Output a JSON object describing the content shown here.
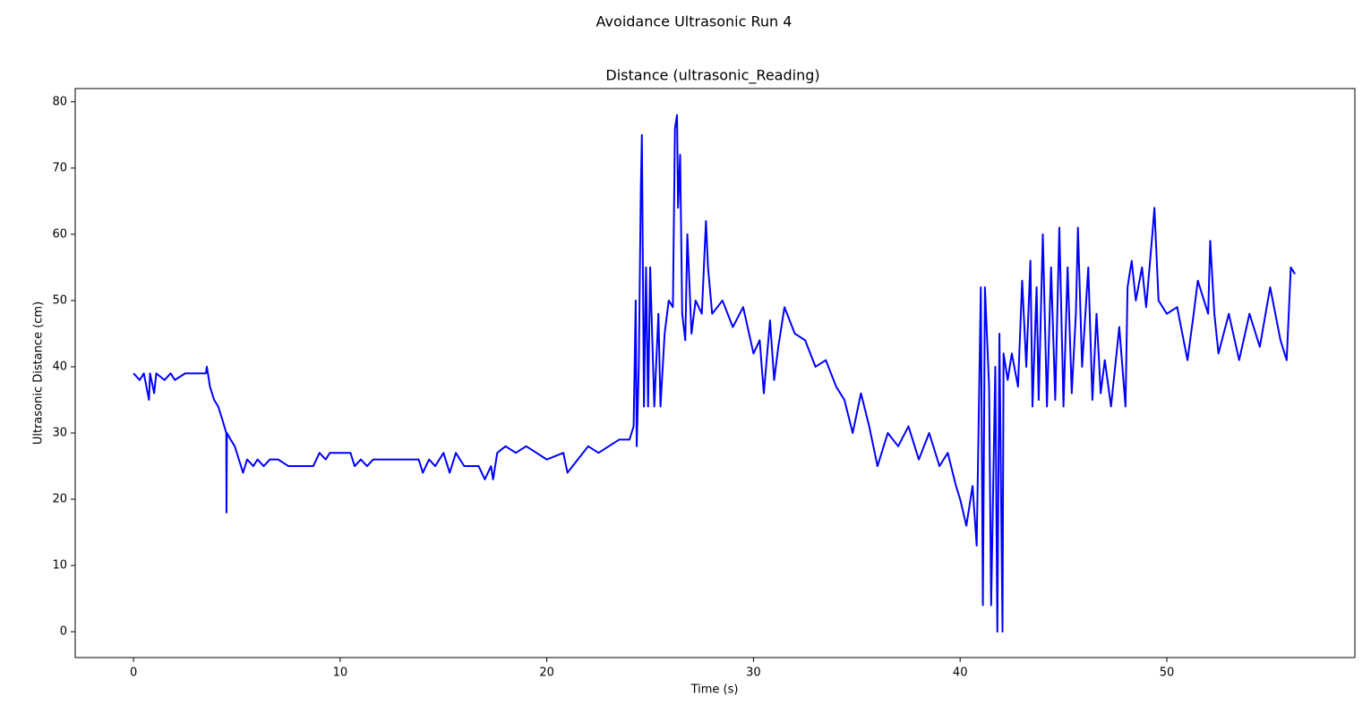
{
  "chart_data": {
    "type": "line",
    "title": "Avoidance Ultrasonic Run 4",
    "subtitle": "Distance (ultrasonic_Reading)",
    "x_label": "Time (s)",
    "y_label": "Ultrasonic Distance (cm)",
    "color": "#0000ff",
    "x": [
      0,
      0.3,
      0.5,
      0.75,
      0.8,
      1.0,
      1.1,
      1.5,
      1.8,
      2.0,
      2.5,
      3.0,
      3.5,
      3.55,
      3.7,
      3.9,
      4.1,
      4.3,
      4.49,
      4.5,
      4.52,
      4.7,
      4.9,
      5.1,
      5.3,
      5.5,
      5.8,
      6.0,
      6.3,
      6.6,
      7.0,
      7.5,
      8.7,
      9.0,
      9.3,
      9.5,
      10.5,
      10.7,
      11.0,
      11.3,
      11.6,
      12.0,
      13.8,
      14.0,
      14.3,
      14.6,
      15.0,
      15.3,
      15.6,
      16.0,
      16.7,
      17.0,
      17.3,
      17.4,
      17.6,
      18.0,
      18.5,
      19.0,
      19.5,
      20.0,
      20.8,
      21.0,
      21.5,
      22.0,
      22.5,
      23.0,
      23.5,
      24.0,
      24.2,
      24.3,
      24.35,
      24.45,
      24.55,
      24.6,
      24.7,
      24.8,
      24.9,
      25.0,
      25.2,
      25.4,
      25.5,
      25.7,
      25.9,
      26.1,
      26.2,
      26.3,
      26.35,
      26.45,
      26.55,
      26.7,
      26.8,
      27.0,
      27.2,
      27.5,
      27.7,
      27.8,
      28.0,
      28.5,
      29.0,
      29.5,
      30.0,
      30.3,
      30.5,
      30.8,
      31.0,
      31.2,
      31.5,
      32.0,
      32.5,
      33.0,
      33.5,
      34.0,
      34.4,
      34.8,
      35.2,
      35.6,
      36.0,
      36.5,
      37.0,
      37.5,
      38.0,
      38.5,
      39.0,
      39.4,
      39.8,
      40.0,
      40.3,
      40.6,
      40.8,
      41.0,
      41.1,
      41.2,
      41.4,
      41.5,
      41.7,
      41.8,
      41.9,
      42.05,
      42.1,
      42.3,
      42.5,
      42.8,
      43.0,
      43.2,
      43.4,
      43.5,
      43.7,
      43.8,
      44.0,
      44.2,
      44.4,
      44.6,
      44.8,
      45.0,
      45.2,
      45.4,
      45.6,
      45.7,
      45.9,
      46.2,
      46.4,
      46.6,
      46.8,
      47.0,
      47.3,
      47.5,
      47.7,
      48.0,
      48.1,
      48.3,
      48.5,
      48.8,
      49.0,
      49.3,
      49.4,
      49.6,
      50.0,
      50.5,
      51.0,
      51.3,
      51.5,
      52.0,
      52.1,
      52.3,
      52.5,
      53.0,
      53.5,
      54.0,
      54.5,
      55.0,
      55.5,
      55.8,
      56.0,
      56.2
    ],
    "values": [
      39,
      38,
      39,
      35,
      39,
      36,
      39,
      38,
      39,
      38,
      39,
      39,
      39,
      40,
      37,
      35,
      34,
      32,
      30,
      18,
      30,
      29,
      28,
      26,
      24,
      26,
      25,
      26,
      25,
      26,
      26,
      25,
      25,
      27,
      26,
      27,
      27,
      25,
      26,
      25,
      26,
      26,
      26,
      24,
      26,
      25,
      27,
      24,
      27,
      25,
      25,
      23,
      25,
      23,
      27,
      28,
      27,
      28,
      27,
      26,
      27,
      24,
      26,
      28,
      27,
      28,
      29,
      29,
      31,
      50,
      28,
      40,
      67,
      75,
      34,
      55,
      34,
      55,
      34,
      48,
      34,
      45,
      50,
      49,
      76,
      78,
      64,
      72,
      48,
      44,
      60,
      45,
      50,
      48,
      62,
      55,
      48,
      50,
      46,
      49,
      42,
      44,
      36,
      47,
      38,
      43,
      49,
      45,
      44,
      40,
      41,
      37,
      35,
      30,
      36,
      31,
      25,
      30,
      28,
      31,
      26,
      30,
      25,
      27,
      22,
      20,
      16,
      22,
      13,
      52,
      4,
      52,
      37,
      4,
      40,
      0,
      45,
      0,
      42,
      38,
      42,
      37,
      53,
      40,
      56,
      34,
      52,
      35,
      60,
      34,
      55,
      35,
      61,
      34,
      55,
      36,
      48,
      61,
      40,
      55,
      35,
      48,
      36,
      41,
      34,
      40,
      46,
      34,
      52,
      56,
      50,
      55,
      49,
      60,
      64,
      50,
      48,
      49,
      41,
      48,
      53,
      48,
      59,
      48,
      42,
      48,
      41,
      48,
      43,
      52,
      44,
      41,
      55,
      54
    ],
    "xlim": [
      -2.82,
      59.1
    ],
    "ylim": [
      -3.9,
      82.0
    ],
    "xticks": [
      0,
      10,
      20,
      30,
      40,
      50
    ],
    "yticks": [
      0,
      10,
      20,
      30,
      40,
      50,
      60,
      70,
      80
    ]
  }
}
